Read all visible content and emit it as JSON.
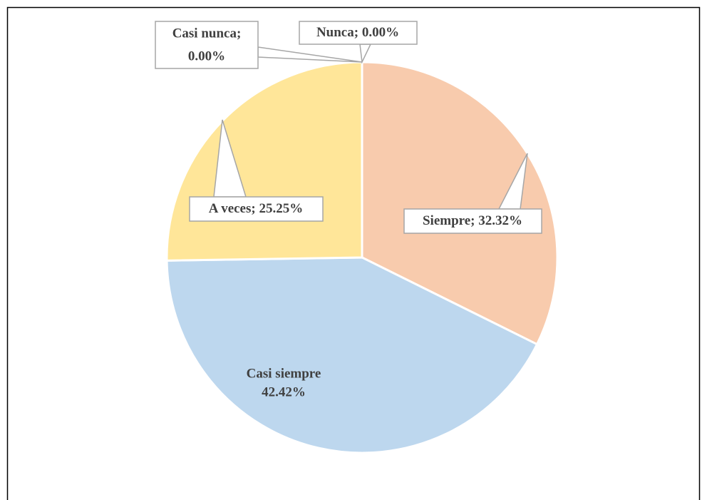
{
  "chart_data": {
    "type": "pie",
    "categories": [
      "Siempre;",
      "Casi siempre",
      "A veces;",
      "Casi nunca;",
      "Nunca;"
    ],
    "values": [
      32.32,
      42.42,
      25.25,
      0.0,
      0.0
    ],
    "value_labels": [
      "32.32%",
      "42.42%",
      "25.25%",
      "0.00%",
      "0.00%"
    ],
    "colors": [
      "#f8cbad",
      "#bdd7ee",
      "#ffe699",
      "#c9c9c9",
      "#a9a9a9"
    ]
  }
}
